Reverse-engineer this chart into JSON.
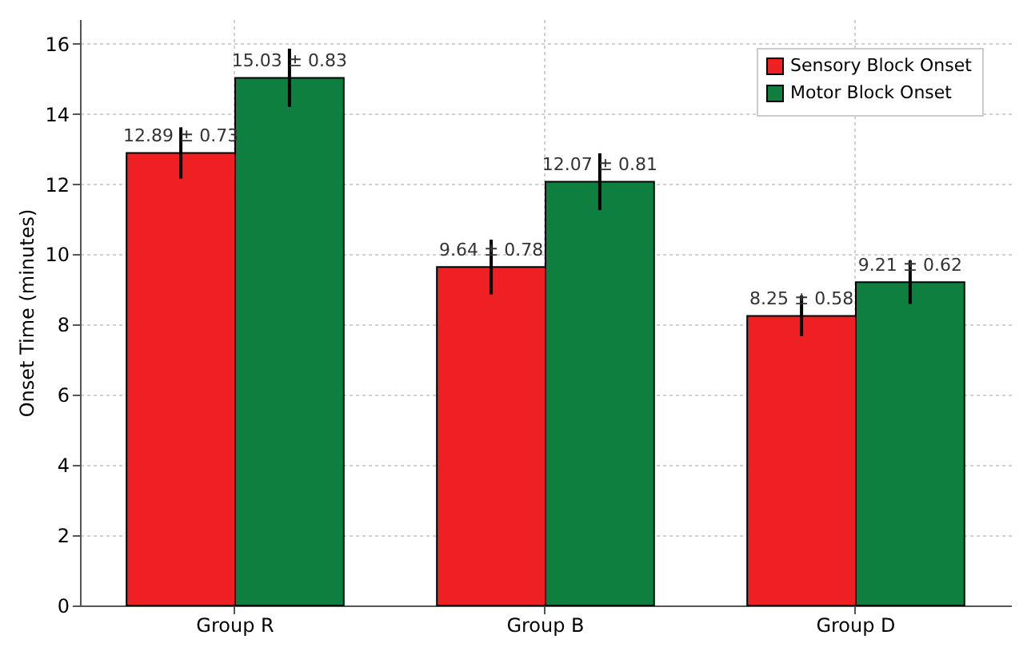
{
  "chart_data": {
    "type": "bar",
    "ylabel": "Onset Time (minutes)",
    "categories": [
      "Group R",
      "Group B",
      "Group D"
    ],
    "series": [
      {
        "name": "Sensory Block Onset",
        "color": "#ee2024",
        "values": [
          12.89,
          9.64,
          8.25
        ],
        "errors": [
          0.73,
          0.78,
          0.58
        ],
        "value_labels": [
          "12.89 ± 0.73",
          "9.64 ± 0.78",
          "8.25 ± 0.58"
        ]
      },
      {
        "name": "Motor Block Onset",
        "color": "#0e7f3e",
        "values": [
          15.03,
          12.07,
          9.21
        ],
        "errors": [
          0.83,
          0.81,
          0.62
        ],
        "value_labels": [
          "15.03 ± 0.83",
          "12.07 ± 0.81",
          "9.21 ± 0.62"
        ]
      }
    ],
    "ylim": [
      0,
      16.7
    ],
    "yticks": [
      0,
      2,
      4,
      6,
      8,
      10,
      12,
      14,
      16
    ],
    "grid": true,
    "legend": "top right"
  }
}
